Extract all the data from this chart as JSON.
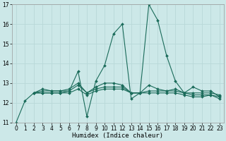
{
  "xlabel": "Humidex (Indice chaleur)",
  "bg_color": "#cce8e8",
  "grid_color": "#b8d8d8",
  "line_color": "#1a6b5a",
  "xlim": [
    -0.5,
    23.5
  ],
  "ylim": [
    11,
    17
  ],
  "yticks": [
    11,
    12,
    13,
    14,
    15,
    16,
    17
  ],
  "xticks": [
    0,
    1,
    2,
    3,
    4,
    5,
    6,
    7,
    8,
    9,
    10,
    11,
    12,
    13,
    14,
    15,
    16,
    17,
    18,
    19,
    20,
    21,
    22,
    23
  ],
  "lines": [
    {
      "x": [
        0,
        1,
        2,
        3,
        4,
        5,
        6,
        7,
        8,
        9,
        10,
        11,
        12,
        13,
        14,
        15,
        16,
        17,
        18,
        19,
        20,
        21,
        22,
        23
      ],
      "y": [
        11.0,
        12.1,
        12.5,
        12.5,
        12.5,
        12.5,
        12.6,
        13.6,
        11.3,
        13.1,
        13.9,
        15.5,
        16.0,
        12.2,
        12.5,
        17.0,
        16.2,
        14.4,
        13.1,
        12.5,
        12.8,
        12.6,
        12.6,
        12.3
      ]
    },
    {
      "x": [
        2,
        3,
        4,
        5,
        6,
        7,
        8,
        9,
        10,
        11,
        12,
        13,
        14,
        15,
        16,
        17,
        18,
        19,
        20,
        21,
        22,
        23
      ],
      "y": [
        12.5,
        12.7,
        12.6,
        12.6,
        12.7,
        13.0,
        12.5,
        12.8,
        13.0,
        13.0,
        12.9,
        12.5,
        12.5,
        12.9,
        12.7,
        12.6,
        12.7,
        12.5,
        12.5,
        12.5,
        12.5,
        12.4
      ]
    },
    {
      "x": [
        2,
        3,
        4,
        5,
        6,
        7,
        8,
        9,
        10,
        11,
        12,
        13,
        14,
        15,
        16,
        17,
        18,
        19,
        20,
        21,
        22,
        23
      ],
      "y": [
        12.5,
        12.6,
        12.6,
        12.6,
        12.6,
        12.9,
        12.5,
        12.7,
        12.8,
        12.8,
        12.8,
        12.5,
        12.5,
        12.6,
        12.6,
        12.6,
        12.6,
        12.5,
        12.4,
        12.4,
        12.4,
        12.3
      ]
    },
    {
      "x": [
        2,
        3,
        4,
        5,
        6,
        7,
        8,
        9,
        10,
        11,
        12,
        13,
        14,
        15,
        16,
        17,
        18,
        19,
        20,
        21,
        22,
        23
      ],
      "y": [
        12.5,
        12.5,
        12.5,
        12.5,
        12.5,
        12.7,
        12.4,
        12.6,
        12.7,
        12.7,
        12.7,
        12.5,
        12.5,
        12.5,
        12.5,
        12.5,
        12.5,
        12.4,
        12.3,
        12.3,
        12.4,
        12.2
      ]
    }
  ]
}
